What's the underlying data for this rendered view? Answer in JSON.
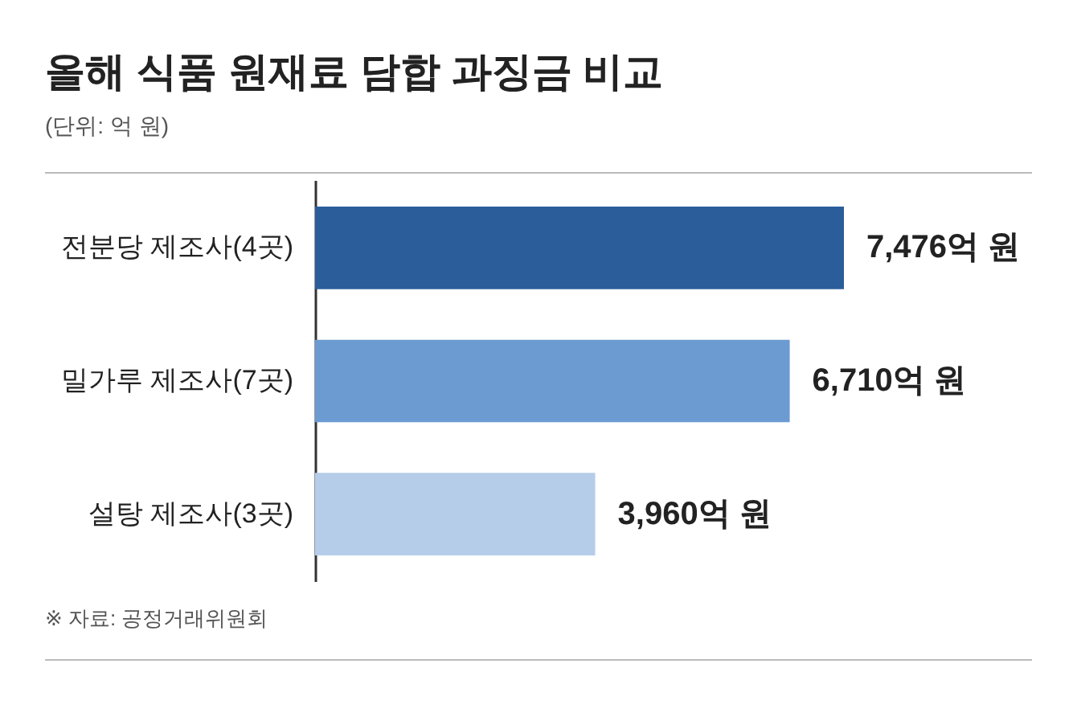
{
  "chart_data": {
    "type": "bar",
    "orientation": "horizontal",
    "title": "올해 식품 원재료 담합 과징금 비교",
    "subtitle": "(단위: 억 원)",
    "categories": [
      "전분당 제조사(4곳)",
      "밀가루 제조사(7곳)",
      "설탕 제조사(3곳)"
    ],
    "values": [
      7476,
      6710,
      3960
    ],
    "colors": [
      "#2b5d9b",
      "#6b9bd1",
      "#b5cde9"
    ],
    "value_labels": [
      "7,476억 원",
      "6,710억 원",
      "3,960억 원"
    ],
    "annotations": [
      "※ 자료: 공정거래위원회"
    ]
  }
}
